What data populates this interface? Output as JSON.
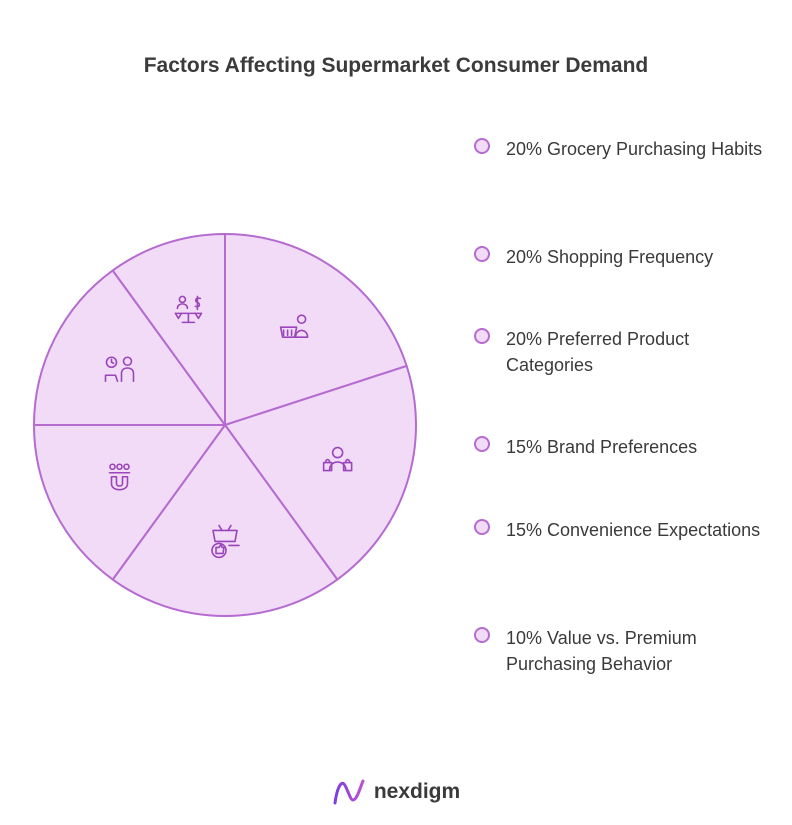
{
  "chart_data": {
    "type": "pie",
    "title": "Factors Affecting Supermarket Consumer Demand",
    "slices": [
      {
        "label": "Grocery Purchasing Habits",
        "value": 20,
        "display": "20% Grocery Purchasing Habits",
        "icon": "shopper-basket-icon"
      },
      {
        "label": "Shopping Frequency",
        "value": 20,
        "display": "20% Shopping Frequency",
        "icon": "shopper-bags-icon"
      },
      {
        "label": "Preferred Product Categories",
        "value": 20,
        "display": "20% Preferred Product Categories",
        "icon": "basket-thumbs-up-icon"
      },
      {
        "label": "Brand Preferences",
        "value": 15,
        "display": "15% Brand Preferences",
        "icon": "magnet-people-icon"
      },
      {
        "label": "Convenience Expectations",
        "value": 15,
        "display": "15% Convenience Expectations",
        "icon": "clock-person-icon"
      },
      {
        "label": "Value vs. Premium Purchasing Behavior",
        "value": 10,
        "display": "10% Value vs. Premium Purchasing Behavior",
        "icon": "scale-balance-icon"
      }
    ],
    "colors": {
      "fill": "#f1dbf7",
      "stroke": "#b56bd0",
      "icon": "#9b45bb"
    },
    "legend_position": "right"
  },
  "brand": {
    "name": "nexdigm",
    "icon": "nexdigm-logo-icon"
  }
}
